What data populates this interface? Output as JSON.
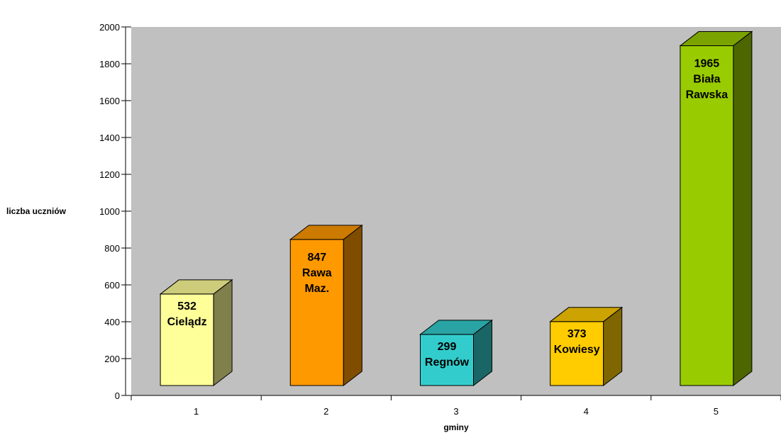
{
  "chart_data": {
    "type": "bar",
    "title": "",
    "xlabel": "gminy",
    "ylabel": "liczba uczniów",
    "ylim": [
      0,
      2000
    ],
    "yticks": [
      0,
      200,
      400,
      600,
      800,
      1000,
      1200,
      1400,
      1600,
      1800,
      2000
    ],
    "categories": [
      "1",
      "2",
      "3",
      "4",
      "5"
    ],
    "values": [
      532,
      847,
      299,
      373,
      1965
    ],
    "bar_labels": [
      [
        "532",
        "Cielądz"
      ],
      [
        "847",
        "Rawa",
        "Maz."
      ],
      [
        "299",
        "Regnów"
      ],
      [
        "373",
        "Kowiesy"
      ],
      [
        "1965",
        "Biała",
        "Rawska"
      ]
    ],
    "colors": [
      {
        "front": "#FFFF99",
        "top": "#CCCC7A",
        "side": "#80804D"
      },
      {
        "front": "#FF9900",
        "top": "#CC7A00",
        "side": "#804D00"
      },
      {
        "front": "#33CCCC",
        "top": "#29A3A3",
        "side": "#1A6666"
      },
      {
        "front": "#FFCC00",
        "top": "#CCA300",
        "side": "#806600"
      },
      {
        "front": "#99CC00",
        "top": "#7AA300",
        "side": "#4D6600"
      }
    ],
    "plot_background": "#C0C0C0",
    "grid": false,
    "legend": "none",
    "style": "3d-column"
  }
}
